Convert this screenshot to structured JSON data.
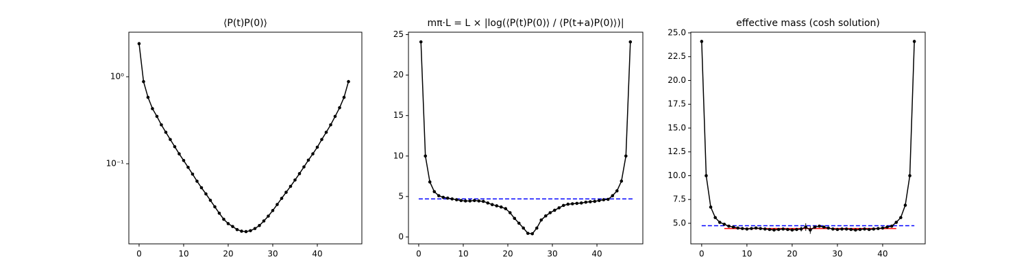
{
  "chart_data": [
    {
      "type": "line",
      "title": "⟨P(t)P(0)⟩",
      "log_y": true,
      "color": "#000000",
      "x": [
        0,
        1,
        2,
        3,
        4,
        5,
        6,
        7,
        8,
        9,
        10,
        11,
        12,
        13,
        14,
        15,
        16,
        17,
        18,
        19,
        20,
        21,
        22,
        23,
        24,
        25,
        26,
        27,
        28,
        29,
        30,
        31,
        32,
        33,
        34,
        35,
        36,
        37,
        38,
        39,
        40,
        41,
        42,
        43,
        44,
        45,
        46,
        47
      ],
      "values": [
        2.4,
        0.88,
        0.58,
        0.43,
        0.35,
        0.28,
        0.23,
        0.19,
        0.157,
        0.13,
        0.109,
        0.091,
        0.076,
        0.063,
        0.053,
        0.045,
        0.038,
        0.032,
        0.027,
        0.023,
        0.0205,
        0.019,
        0.0175,
        0.0168,
        0.0166,
        0.017,
        0.018,
        0.0195,
        0.022,
        0.025,
        0.029,
        0.034,
        0.04,
        0.047,
        0.055,
        0.065,
        0.077,
        0.092,
        0.11,
        0.13,
        0.155,
        0.19,
        0.23,
        0.28,
        0.35,
        0.44,
        0.58,
        0.88
      ],
      "xlim": [
        -2.3,
        50
      ],
      "xticks": [
        0,
        10,
        20,
        30,
        40
      ],
      "ylim": [
        0.012,
        3.25
      ],
      "yticks": [
        {
          "value": 1,
          "label": "10⁰"
        },
        {
          "value": 0.1,
          "label": "10⁻¹"
        }
      ]
    },
    {
      "type": "line",
      "title": "mπ·L = L × |log(⟨P(t)P(0)⟩ / ⟨P(t+a)P(0)⟩)|",
      "log_y": false,
      "color": "#000000",
      "x": [
        0.5,
        1.5,
        2.5,
        3.5,
        4.5,
        5.5,
        6.5,
        7.5,
        8.5,
        9.5,
        10.5,
        11.5,
        12.5,
        13.5,
        14.5,
        15.5,
        16.5,
        17.5,
        18.5,
        19.5,
        20.5,
        21.5,
        22.5,
        23.5,
        24.5,
        25.5,
        26.5,
        27.5,
        28.5,
        29.5,
        30.5,
        31.5,
        32.5,
        33.5,
        34.5,
        35.5,
        36.5,
        37.5,
        38.5,
        39.5,
        40.5,
        41.5,
        42.5,
        43.5,
        44.5,
        45.5,
        46.5,
        47.5
      ],
      "values": [
        24.1,
        10.0,
        6.8,
        5.6,
        5.1,
        4.9,
        4.8,
        4.7,
        4.6,
        4.5,
        4.45,
        4.45,
        4.5,
        4.45,
        4.4,
        4.2,
        4.0,
        3.85,
        3.7,
        3.5,
        3.0,
        2.3,
        1.7,
        1.1,
        0.45,
        0.4,
        1.1,
        2.1,
        2.6,
        3.0,
        3.3,
        3.6,
        3.9,
        4.05,
        4.1,
        4.15,
        4.2,
        4.3,
        4.35,
        4.4,
        4.5,
        4.6,
        4.65,
        5.1,
        5.7,
        6.9,
        10.0,
        24.1
      ],
      "xlim": [
        -2.3,
        50.3
      ],
      "xticks": [
        0,
        10,
        20,
        30,
        40
      ],
      "ylim": [
        -0.85,
        25.3
      ],
      "yticks": [
        0,
        5,
        10,
        15,
        20,
        25
      ],
      "reference_lines": [
        {
          "value": 4.7,
          "x": [
            0,
            48
          ],
          "color": "#0000ff",
          "style": "dashed"
        }
      ]
    },
    {
      "type": "errorbar",
      "title": "effective mass (cosh solution)",
      "log_y": false,
      "color": "#000000",
      "x": [
        0,
        1,
        2,
        3,
        4,
        5,
        6,
        7,
        8,
        9,
        10,
        11,
        12,
        13,
        14,
        15,
        16,
        17,
        18,
        19,
        20,
        21,
        22,
        23,
        24,
        25,
        26,
        27,
        28,
        29,
        30,
        31,
        32,
        33,
        34,
        35,
        36,
        37,
        38,
        39,
        40,
        41,
        42,
        43,
        44,
        45,
        46,
        47
      ],
      "values": [
        24.1,
        10.0,
        6.7,
        5.6,
        5.1,
        4.9,
        4.7,
        4.6,
        4.5,
        4.45,
        4.4,
        4.45,
        4.5,
        4.45,
        4.4,
        4.35,
        4.3,
        4.35,
        4.4,
        4.35,
        4.3,
        4.35,
        4.4,
        4.6,
        4.3,
        4.6,
        4.7,
        4.6,
        4.5,
        4.4,
        4.35,
        4.4,
        4.4,
        4.35,
        4.3,
        4.35,
        4.4,
        4.35,
        4.4,
        4.45,
        4.5,
        4.6,
        4.7,
        5.1,
        5.6,
        6.9,
        10.0,
        24.1
      ],
      "errors": [
        0.1,
        0.1,
        0.08,
        0.08,
        0.08,
        0.08,
        0.08,
        0.08,
        0.08,
        0.08,
        0.08,
        0.08,
        0.08,
        0.08,
        0.08,
        0.08,
        0.08,
        0.08,
        0.08,
        0.08,
        0.1,
        0.15,
        0.25,
        0.4,
        0.4,
        0.15,
        0.1,
        0.08,
        0.08,
        0.08,
        0.08,
        0.08,
        0.08,
        0.08,
        0.08,
        0.08,
        0.08,
        0.08,
        0.08,
        0.08,
        0.08,
        0.08,
        0.08,
        0.08,
        0.08,
        0.08,
        0.1,
        0.1
      ],
      "xlim": [
        -2.4,
        49.4
      ],
      "xticks": [
        0,
        10,
        20,
        30,
        40
      ],
      "ylim": [
        2.84,
        25.07
      ],
      "yticks": [
        {
          "value": 5,
          "label": "5.0"
        },
        7.5,
        {
          "value": 10,
          "label": "10.0"
        },
        12.5,
        {
          "value": 15,
          "label": "15.0"
        },
        17.5,
        {
          "value": 20,
          "label": "20.0"
        },
        22.5,
        {
          "value": 25,
          "label": "25.0"
        }
      ],
      "reference_lines": [
        {
          "value": 4.45,
          "x": [
            5,
            43
          ],
          "color": "#ff0000",
          "style": "solid"
        },
        {
          "value": 4.75,
          "x": [
            0,
            47
          ],
          "color": "#0000ff",
          "style": "dashed"
        }
      ]
    }
  ]
}
